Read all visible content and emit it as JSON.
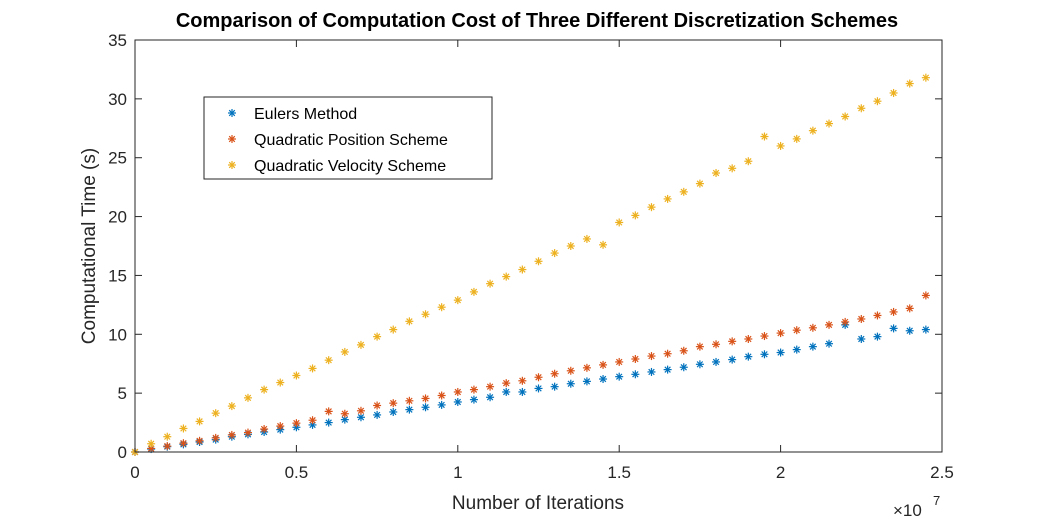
{
  "chart_data": {
    "type": "scatter",
    "title": "Comparison of Computation Cost of Three Different Discretization Schemes",
    "xlabel": "Number of Iterations",
    "ylabel": "Computational Time (s)",
    "x_multiplier_label": "×10",
    "x_multiplier_exponent": "7",
    "xlim": [
      0,
      2.5
    ],
    "ylim": [
      0,
      35
    ],
    "x_unit_note": "x values shown in units of 10^7 iterations",
    "xticks": [
      0,
      0.5,
      1,
      1.5,
      2,
      2.5
    ],
    "xtick_labels": [
      "0",
      "0.5",
      "1",
      "1.5",
      "2",
      "2.5"
    ],
    "yticks": [
      0,
      5,
      10,
      15,
      20,
      25,
      30,
      35
    ],
    "ytick_labels": [
      "0",
      "5",
      "10",
      "15",
      "20",
      "25",
      "30",
      "35"
    ],
    "grid": false,
    "legend_position": "upper-left",
    "marker": "*",
    "x": [
      0,
      0.05,
      0.1,
      0.15,
      0.2,
      0.25,
      0.3,
      0.35,
      0.4,
      0.45,
      0.5,
      0.55,
      0.6,
      0.65,
      0.7,
      0.75,
      0.8,
      0.85,
      0.9,
      0.95,
      1.0,
      1.05,
      1.1,
      1.15,
      1.2,
      1.25,
      1.3,
      1.35,
      1.4,
      1.45,
      1.5,
      1.55,
      1.6,
      1.65,
      1.7,
      1.75,
      1.8,
      1.85,
      1.9,
      1.95,
      2.0,
      2.05,
      2.1,
      2.15,
      2.2,
      2.25,
      2.3,
      2.35,
      2.4,
      2.45
    ],
    "series": [
      {
        "name": "Eulers Method",
        "color": "#0072BD",
        "values": [
          0,
          0.25,
          0.45,
          0.65,
          0.85,
          1.05,
          1.3,
          1.5,
          1.7,
          1.9,
          2.1,
          2.3,
          2.5,
          2.75,
          2.95,
          3.15,
          3.4,
          3.6,
          3.8,
          4.0,
          4.25,
          4.45,
          4.65,
          5.1,
          5.1,
          5.4,
          5.55,
          5.8,
          6.0,
          6.2,
          6.4,
          6.6,
          6.8,
          7.0,
          7.2,
          7.45,
          7.65,
          7.85,
          8.1,
          8.3,
          8.45,
          8.7,
          8.95,
          9.2,
          10.8,
          9.6,
          9.8,
          10.5,
          10.3,
          10.4
        ]
      },
      {
        "name": "Quadratic Position Scheme",
        "color": "#D95319",
        "values": [
          0,
          0.3,
          0.5,
          0.75,
          0.95,
          1.2,
          1.45,
          1.65,
          1.95,
          2.2,
          2.45,
          2.7,
          3.45,
          3.25,
          3.5,
          3.95,
          4.15,
          4.35,
          4.55,
          4.8,
          5.1,
          5.3,
          5.55,
          5.85,
          6.05,
          6.35,
          6.65,
          6.9,
          7.15,
          7.4,
          7.65,
          7.9,
          8.15,
          8.35,
          8.6,
          8.95,
          9.15,
          9.4,
          9.6,
          9.85,
          10.1,
          10.35,
          10.55,
          10.8,
          11.05,
          11.3,
          11.6,
          11.9,
          12.2,
          13.3
        ]
      },
      {
        "name": "Quadratic Velocity Scheme",
        "color": "#EDB120",
        "values": [
          0,
          0.7,
          1.3,
          2.0,
          2.6,
          3.3,
          3.9,
          4.6,
          5.3,
          5.9,
          6.5,
          7.1,
          7.8,
          8.5,
          9.1,
          9.8,
          10.4,
          11.1,
          11.7,
          12.3,
          12.9,
          13.6,
          14.3,
          14.9,
          15.5,
          16.2,
          16.9,
          17.5,
          18.1,
          17.6,
          19.5,
          20.1,
          20.8,
          21.5,
          22.1,
          22.8,
          23.7,
          24.1,
          24.7,
          26.8,
          26.0,
          26.6,
          27.3,
          27.9,
          28.5,
          29.2,
          29.8,
          30.5,
          31.3,
          31.8
        ]
      }
    ]
  }
}
